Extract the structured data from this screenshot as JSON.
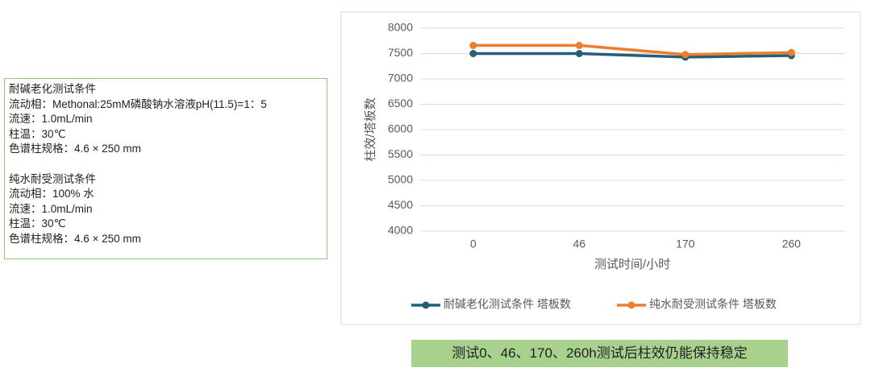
{
  "chart_data": {
    "type": "line",
    "ylabel": "柱效/塔板数",
    "xlabel": "测试时间/小时",
    "categories": [
      "0",
      "46",
      "170",
      "260"
    ],
    "series": [
      {
        "name": "耐碱老化测试条件 塔板数",
        "color": "#255e79",
        "values": [
          7500,
          7500,
          7430,
          7460
        ]
      },
      {
        "name": "纯水耐受测试条件 塔板数",
        "color": "#ed7d31",
        "values": [
          7660,
          7660,
          7480,
          7520
        ]
      }
    ],
    "ylim": [
      4000,
      8000
    ],
    "yticks": [
      4000,
      4500,
      5000,
      5500,
      6000,
      6500,
      7000,
      7500,
      8000
    ],
    "grid": true,
    "legend": "bottom"
  },
  "text_box": {
    "groups": [
      {
        "lines": [
          "耐碱老化测试条件",
          "流动相：Methonal:25mM磷酸钠水溶液pH(11.5)=1：5",
          "流速：1.0mL/min",
          "柱温：30℃",
          "色谱柱规格：4.6 × 250 mm"
        ]
      },
      {
        "lines": [
          "纯水耐受测试条件",
          "流动相：100% 水",
          "流速：1.0mL/min",
          "柱温：30℃",
          "色谱柱规格：4.6 × 250 mm"
        ]
      }
    ]
  },
  "caption": "测试0、46、170、260h测试后柱效仍能保持稳定"
}
